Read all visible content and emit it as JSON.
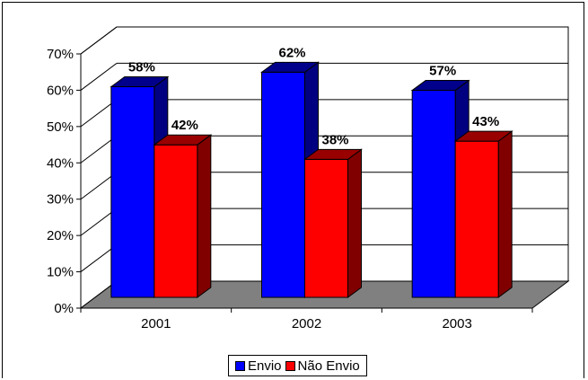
{
  "chart_data": {
    "type": "bar",
    "categories": [
      "2001",
      "2002",
      "2003"
    ],
    "series": [
      {
        "name": "Envio",
        "values": [
          58,
          62,
          57
        ],
        "labels": [
          "58%",
          "62%",
          "57%"
        ],
        "color": "#0000ff"
      },
      {
        "name": "Não Envio",
        "values": [
          42,
          38,
          43
        ],
        "labels": [
          "42%",
          "38%",
          "43%"
        ],
        "color": "#ff0000"
      }
    ],
    "yticks": [
      "0%",
      "10%",
      "20%",
      "30%",
      "40%",
      "50%",
      "60%",
      "70%"
    ],
    "ylim": [
      0,
      70
    ],
    "grid": true,
    "legend_position": "bottom",
    "floor_color": "#808080"
  }
}
